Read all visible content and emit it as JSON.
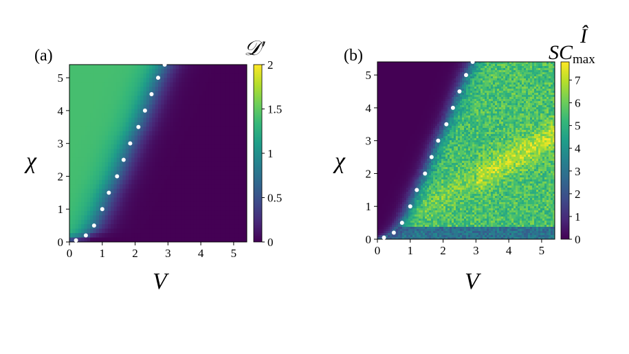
{
  "colors": {
    "viridis": [
      "#440154",
      "#482878",
      "#3e4a89",
      "#31688e",
      "#26828e",
      "#1f9e89",
      "#35b779",
      "#6ece58",
      "#b5de2b",
      "#fde725"
    ],
    "dots": "#ffffff"
  },
  "chart_data": [
    {
      "type": "heatmap",
      "panel_label": "(a)",
      "xlabel": "V",
      "ylabel": "χ",
      "xlim": [
        0,
        5.4
      ],
      "ylim": [
        0,
        5.4
      ],
      "xticks": [
        "0",
        "1",
        "2",
        "3",
        "4",
        "5"
      ],
      "yticks": [
        "0",
        "1",
        "2",
        "3",
        "4",
        "5"
      ],
      "colorbar": {
        "title": "𝒟′",
        "range": [
          0,
          2
        ],
        "ticks": [
          "0",
          "0.5",
          "1",
          "1.5",
          "2"
        ]
      },
      "description_values": {
        "low_V_region_value": 1.4,
        "high_V_region_value": 0.0
      },
      "boundary_points": [
        {
          "x": 0.2,
          "y": 0.05
        },
        {
          "x": 0.5,
          "y": 0.2
        },
        {
          "x": 0.75,
          "y": 0.5
        },
        {
          "x": 1.0,
          "y": 1.0
        },
        {
          "x": 1.2,
          "y": 1.5
        },
        {
          "x": 1.45,
          "y": 2.0
        },
        {
          "x": 1.65,
          "y": 2.5
        },
        {
          "x": 1.85,
          "y": 3.0
        },
        {
          "x": 2.1,
          "y": 3.5
        },
        {
          "x": 2.3,
          "y": 4.0
        },
        {
          "x": 2.5,
          "y": 4.5
        },
        {
          "x": 2.7,
          "y": 5.0
        },
        {
          "x": 2.9,
          "y": 5.4
        }
      ]
    },
    {
      "type": "heatmap",
      "panel_label": "(b)",
      "xlabel": "V",
      "ylabel": "χ",
      "xlim": [
        0,
        5.4
      ],
      "ylim": [
        0,
        5.4
      ],
      "xticks": [
        "0",
        "1",
        "2",
        "3",
        "4",
        "5"
      ],
      "yticks": [
        "0",
        "1",
        "2",
        "3",
        "4",
        "5"
      ],
      "colorbar": {
        "title_main": "SC",
        "title_sup": "Î",
        "title_sub": "max",
        "range": [
          0,
          7.8
        ],
        "ticks": [
          "0",
          "1",
          "2",
          "3",
          "4",
          "5",
          "6",
          "7"
        ]
      },
      "description_values": {
        "low_V_region_value": 0.0,
        "high_V_region_typical_value": 5.5,
        "bright_band_value": 7.0
      },
      "boundary_points": [
        {
          "x": 0.2,
          "y": 0.05
        },
        {
          "x": 0.5,
          "y": 0.2
        },
        {
          "x": 0.75,
          "y": 0.5
        },
        {
          "x": 1.0,
          "y": 1.0
        },
        {
          "x": 1.2,
          "y": 1.5
        },
        {
          "x": 1.45,
          "y": 2.0
        },
        {
          "x": 1.65,
          "y": 2.5
        },
        {
          "x": 1.85,
          "y": 3.0
        },
        {
          "x": 2.1,
          "y": 3.5
        },
        {
          "x": 2.3,
          "y": 4.0
        },
        {
          "x": 2.5,
          "y": 4.5
        },
        {
          "x": 2.7,
          "y": 5.0
        },
        {
          "x": 2.9,
          "y": 5.4
        }
      ]
    }
  ]
}
